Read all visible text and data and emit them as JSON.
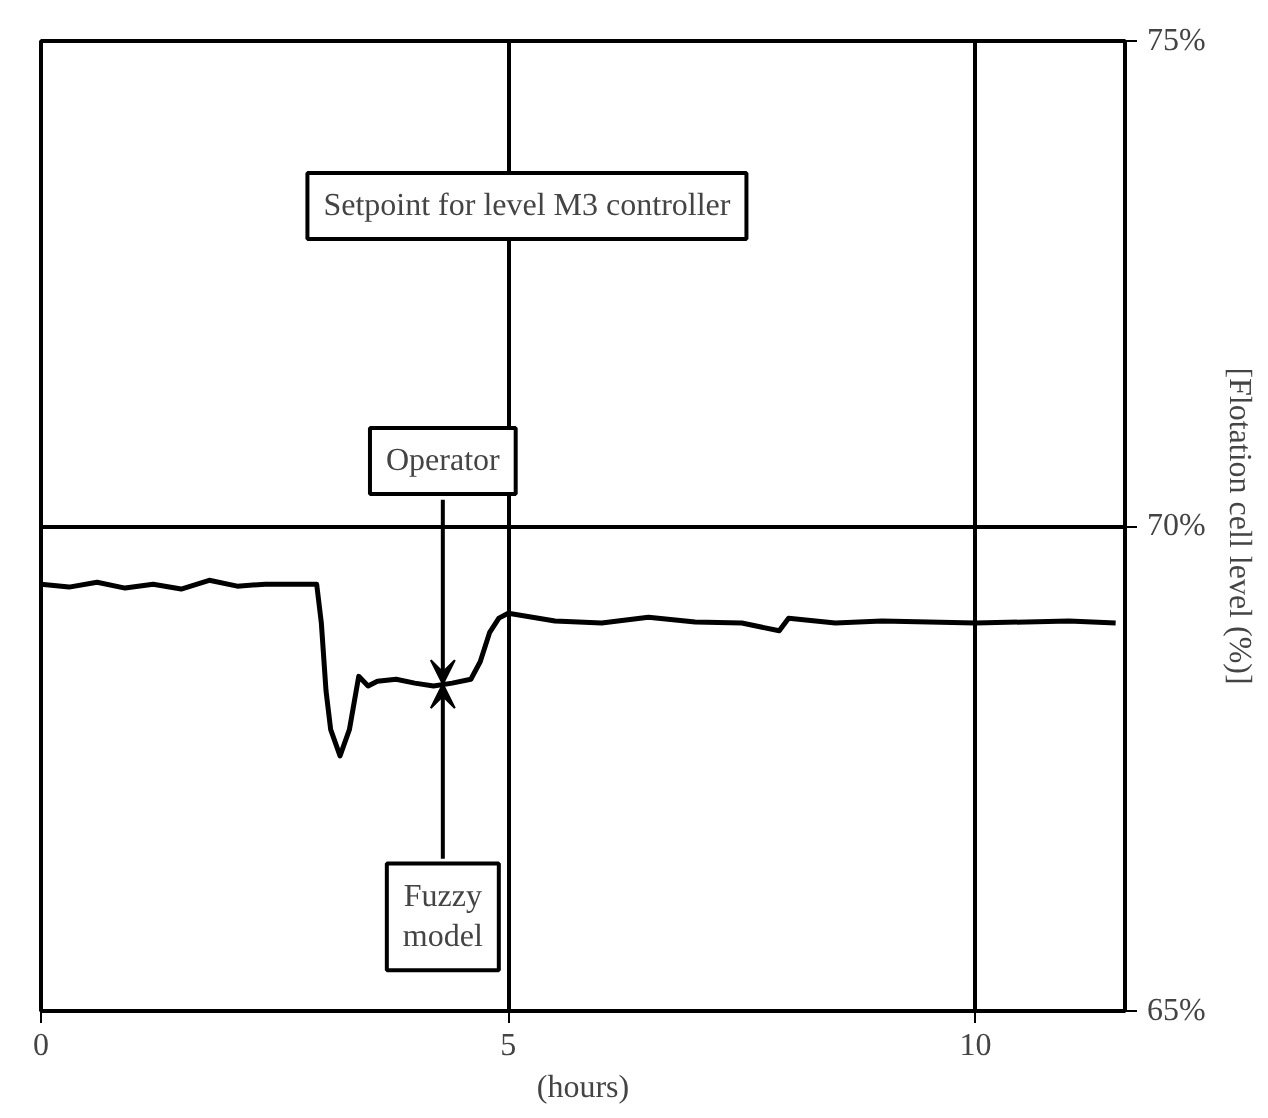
{
  "chart_data": {
    "type": "line",
    "xlabel": "(hours)",
    "ylabel": "[Flotation cell level (%)]",
    "x": [
      0,
      0.3,
      0.6,
      0.9,
      1.2,
      1.5,
      1.8,
      2.1,
      2.4,
      2.7,
      2.95,
      3.0,
      3.05,
      3.1,
      3.2,
      3.3,
      3.4,
      3.5,
      3.6,
      3.8,
      4.0,
      4.2,
      4.4,
      4.6,
      4.7,
      4.8,
      4.9,
      5.0,
      5.5,
      6.0,
      6.5,
      7.0,
      7.5,
      7.9,
      8.0,
      8.5,
      9.0,
      10.0,
      11.0,
      11.5
    ],
    "series": [
      {
        "color": "#000000",
        "values": [
          69.4,
          69.37,
          69.42,
          69.36,
          69.4,
          69.35,
          69.44,
          69.38,
          69.4,
          69.4,
          69.4,
          69.0,
          68.3,
          67.9,
          67.63,
          67.9,
          68.45,
          68.35,
          68.4,
          68.42,
          68.38,
          68.35,
          68.38,
          68.42,
          68.6,
          68.9,
          69.05,
          69.1,
          69.02,
          69.0,
          69.06,
          69.01,
          69.0,
          68.92,
          69.05,
          69.0,
          69.02,
          69.0,
          69.02,
          69.0
        ]
      }
    ],
    "xlim": [
      0,
      11.6
    ],
    "ylim": [
      65,
      75
    ],
    "xticks": [
      0,
      5,
      10
    ],
    "yticks": [
      {
        "value": 65,
        "label": "65%"
      },
      {
        "value": 70,
        "label": "70%"
      },
      {
        "value": 75,
        "label": "75%"
      }
    ],
    "grid": true,
    "annotations": [
      "Setpoint for level M3 controller",
      {
        "text": "Operator",
        "x": 4.3,
        "y": 68.37
      },
      {
        "text": "Fuzzy model",
        "x": 4.3,
        "y": 68.37
      }
    ]
  }
}
